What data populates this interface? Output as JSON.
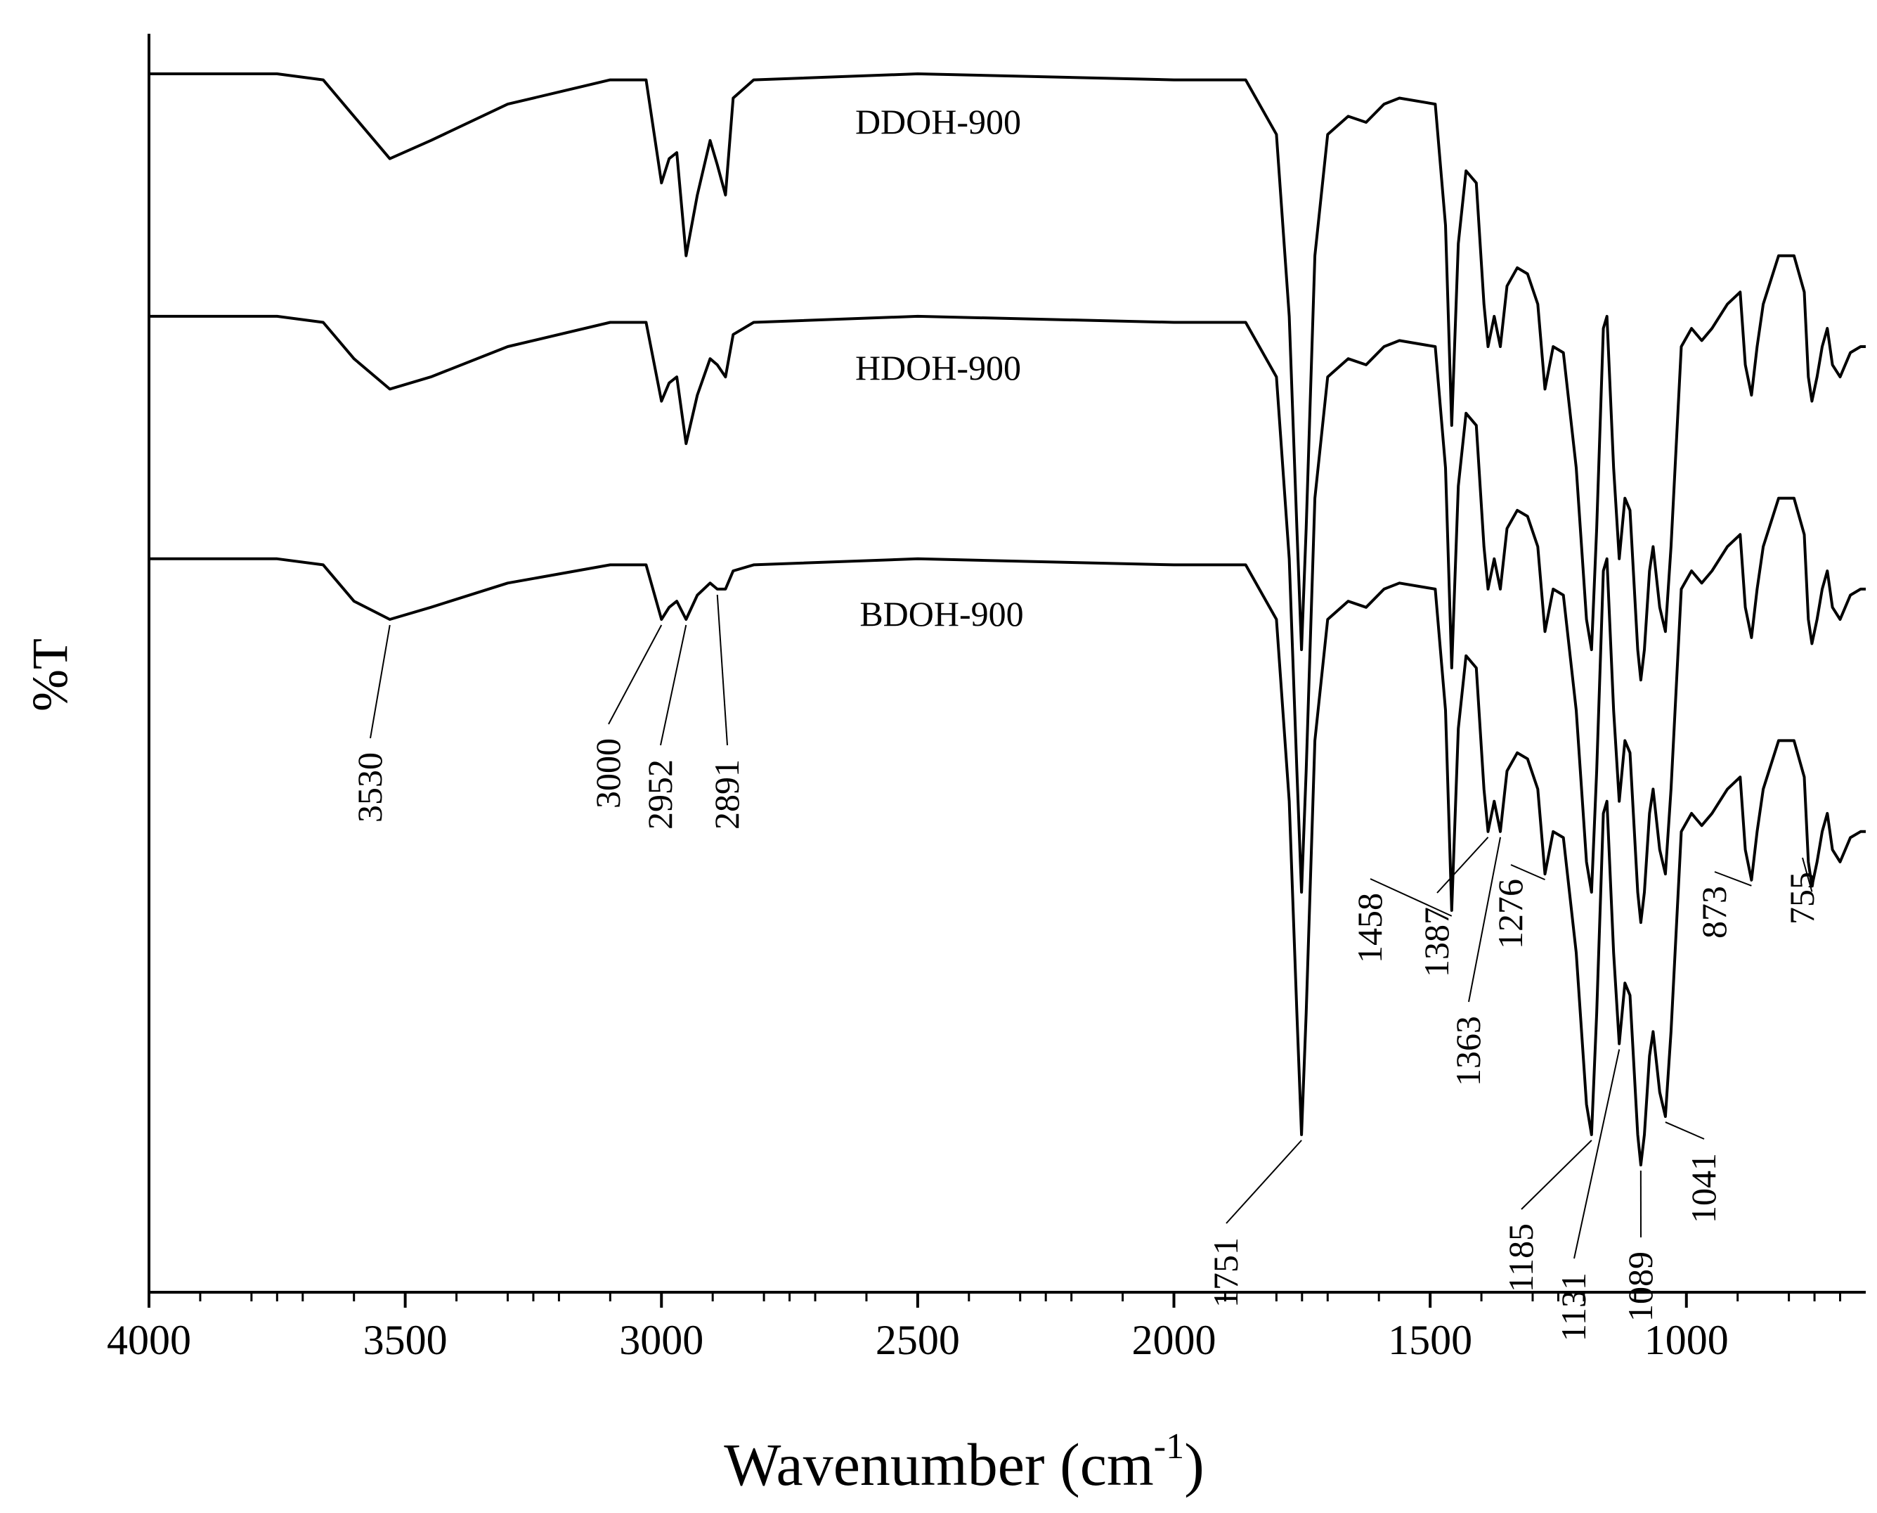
{
  "chart_data": {
    "type": "line",
    "title": "",
    "xlabel": "Wavenumber (cm",
    "xlabel_sup": "-1",
    "xlabel_close": ")",
    "ylabel": "%T",
    "xlim": [
      4000,
      650
    ],
    "x_ticks": [
      4000,
      3500,
      3000,
      2500,
      2000,
      1500,
      1000
    ],
    "x_tick_labels": [
      "4000",
      "3500",
      "3000",
      "2500",
      "2000",
      "1500",
      "1000"
    ],
    "y_ticks_shown": false,
    "series": [
      {
        "name": "DDOH-900",
        "offset": 3.0,
        "points": [
          [
            4000,
            1.0
          ],
          [
            3750,
            1.0
          ],
          [
            3660,
            0.99
          ],
          [
            3600,
            0.93
          ],
          [
            3530,
            0.86
          ],
          [
            3450,
            0.89
          ],
          [
            3300,
            0.95
          ],
          [
            3100,
            0.99
          ],
          [
            3030,
            0.99
          ],
          [
            3000,
            0.82
          ],
          [
            2985,
            0.86
          ],
          [
            2970,
            0.87
          ],
          [
            2952,
            0.7
          ],
          [
            2930,
            0.8
          ],
          [
            2905,
            0.89
          ],
          [
            2891,
            0.85
          ],
          [
            2875,
            0.8
          ],
          [
            2860,
            0.96
          ],
          [
            2820,
            0.99
          ],
          [
            2500,
            1.0
          ],
          [
            2000,
            0.99
          ],
          [
            1860,
            0.99
          ],
          [
            1800,
            0.9
          ],
          [
            1775,
            0.6
          ],
          [
            1760,
            0.25
          ],
          [
            1751,
            0.05
          ],
          [
            1742,
            0.25
          ],
          [
            1725,
            0.7
          ],
          [
            1700,
            0.9
          ],
          [
            1660,
            0.93
          ],
          [
            1625,
            0.92
          ],
          [
            1590,
            0.95
          ],
          [
            1560,
            0.96
          ],
          [
            1490,
            0.95
          ],
          [
            1470,
            0.75
          ],
          [
            1458,
            0.42
          ],
          [
            1445,
            0.72
          ],
          [
            1430,
            0.84
          ],
          [
            1410,
            0.82
          ],
          [
            1395,
            0.62
          ],
          [
            1387,
            0.55
          ],
          [
            1375,
            0.6
          ],
          [
            1363,
            0.55
          ],
          [
            1350,
            0.65
          ],
          [
            1330,
            0.68
          ],
          [
            1310,
            0.67
          ],
          [
            1290,
            0.62
          ],
          [
            1276,
            0.48
          ],
          [
            1260,
            0.55
          ],
          [
            1240,
            0.54
          ],
          [
            1215,
            0.35
          ],
          [
            1195,
            0.1
          ],
          [
            1185,
            0.05
          ],
          [
            1175,
            0.25
          ],
          [
            1162,
            0.58
          ],
          [
            1155,
            0.6
          ],
          [
            1142,
            0.35
          ],
          [
            1131,
            0.2
          ],
          [
            1120,
            0.3
          ],
          [
            1110,
            0.28
          ],
          [
            1095,
            0.05
          ],
          [
            1089,
            0.0
          ],
          [
            1082,
            0.05
          ],
          [
            1072,
            0.18
          ],
          [
            1065,
            0.22
          ],
          [
            1052,
            0.12
          ],
          [
            1041,
            0.08
          ],
          [
            1030,
            0.22
          ],
          [
            1010,
            0.55
          ],
          [
            990,
            0.58
          ],
          [
            970,
            0.56
          ],
          [
            950,
            0.58
          ],
          [
            920,
            0.62
          ],
          [
            895,
            0.64
          ],
          [
            885,
            0.52
          ],
          [
            873,
            0.47
          ],
          [
            862,
            0.55
          ],
          [
            850,
            0.62
          ],
          [
            820,
            0.7
          ],
          [
            790,
            0.7
          ],
          [
            770,
            0.64
          ],
          [
            762,
            0.5
          ],
          [
            755,
            0.46
          ],
          [
            745,
            0.5
          ],
          [
            735,
            0.55
          ],
          [
            725,
            0.58
          ],
          [
            715,
            0.52
          ],
          [
            700,
            0.5
          ],
          [
            680,
            0.54
          ],
          [
            660,
            0.55
          ],
          [
            650,
            0.55
          ]
        ]
      },
      {
        "name": "HDOH-900",
        "offset": 2.6,
        "points": [
          [
            4000,
            1.0
          ],
          [
            3750,
            1.0
          ],
          [
            3660,
            0.99
          ],
          [
            3600,
            0.93
          ],
          [
            3530,
            0.88
          ],
          [
            3450,
            0.9
          ],
          [
            3300,
            0.95
          ],
          [
            3100,
            0.99
          ],
          [
            3030,
            0.99
          ],
          [
            3000,
            0.86
          ],
          [
            2985,
            0.89
          ],
          [
            2970,
            0.9
          ],
          [
            2952,
            0.79
          ],
          [
            2930,
            0.87
          ],
          [
            2905,
            0.93
          ],
          [
            2891,
            0.92
          ],
          [
            2875,
            0.9
          ],
          [
            2860,
            0.97
          ],
          [
            2820,
            0.99
          ],
          [
            2500,
            1.0
          ],
          [
            2000,
            0.99
          ],
          [
            1860,
            0.99
          ],
          [
            1800,
            0.9
          ],
          [
            1775,
            0.6
          ],
          [
            1760,
            0.25
          ],
          [
            1751,
            0.05
          ],
          [
            1742,
            0.25
          ],
          [
            1725,
            0.7
          ],
          [
            1700,
            0.9
          ],
          [
            1660,
            0.93
          ],
          [
            1625,
            0.92
          ],
          [
            1590,
            0.95
          ],
          [
            1560,
            0.96
          ],
          [
            1490,
            0.95
          ],
          [
            1470,
            0.75
          ],
          [
            1458,
            0.42
          ],
          [
            1445,
            0.72
          ],
          [
            1430,
            0.84
          ],
          [
            1410,
            0.82
          ],
          [
            1395,
            0.62
          ],
          [
            1387,
            0.55
          ],
          [
            1375,
            0.6
          ],
          [
            1363,
            0.55
          ],
          [
            1350,
            0.65
          ],
          [
            1330,
            0.68
          ],
          [
            1310,
            0.67
          ],
          [
            1290,
            0.62
          ],
          [
            1276,
            0.48
          ],
          [
            1260,
            0.55
          ],
          [
            1240,
            0.54
          ],
          [
            1215,
            0.35
          ],
          [
            1195,
            0.1
          ],
          [
            1185,
            0.05
          ],
          [
            1175,
            0.25
          ],
          [
            1162,
            0.58
          ],
          [
            1155,
            0.6
          ],
          [
            1142,
            0.35
          ],
          [
            1131,
            0.2
          ],
          [
            1120,
            0.3
          ],
          [
            1110,
            0.28
          ],
          [
            1095,
            0.05
          ],
          [
            1089,
            0.0
          ],
          [
            1082,
            0.05
          ],
          [
            1072,
            0.18
          ],
          [
            1065,
            0.22
          ],
          [
            1052,
            0.12
          ],
          [
            1041,
            0.08
          ],
          [
            1030,
            0.22
          ],
          [
            1010,
            0.55
          ],
          [
            990,
            0.58
          ],
          [
            970,
            0.56
          ],
          [
            950,
            0.58
          ],
          [
            920,
            0.62
          ],
          [
            895,
            0.64
          ],
          [
            885,
            0.52
          ],
          [
            873,
            0.47
          ],
          [
            862,
            0.55
          ],
          [
            850,
            0.62
          ],
          [
            820,
            0.7
          ],
          [
            790,
            0.7
          ],
          [
            770,
            0.64
          ],
          [
            762,
            0.5
          ],
          [
            755,
            0.46
          ],
          [
            745,
            0.5
          ],
          [
            735,
            0.55
          ],
          [
            725,
            0.58
          ],
          [
            715,
            0.52
          ],
          [
            700,
            0.5
          ],
          [
            680,
            0.54
          ],
          [
            660,
            0.55
          ],
          [
            650,
            0.55
          ]
        ]
      },
      {
        "name": "BDOH-900",
        "offset": 2.2,
        "points": [
          [
            4000,
            1.0
          ],
          [
            3750,
            1.0
          ],
          [
            3660,
            0.99
          ],
          [
            3600,
            0.93
          ],
          [
            3530,
            0.9
          ],
          [
            3450,
            0.92
          ],
          [
            3300,
            0.96
          ],
          [
            3100,
            0.99
          ],
          [
            3030,
            0.99
          ],
          [
            3000,
            0.9
          ],
          [
            2985,
            0.92
          ],
          [
            2970,
            0.93
          ],
          [
            2952,
            0.9
          ],
          [
            2930,
            0.94
          ],
          [
            2905,
            0.96
          ],
          [
            2891,
            0.95
          ],
          [
            2875,
            0.95
          ],
          [
            2860,
            0.98
          ],
          [
            2820,
            0.99
          ],
          [
            2500,
            1.0
          ],
          [
            2000,
            0.99
          ],
          [
            1860,
            0.99
          ],
          [
            1800,
            0.9
          ],
          [
            1775,
            0.6
          ],
          [
            1760,
            0.25
          ],
          [
            1751,
            0.05
          ],
          [
            1742,
            0.25
          ],
          [
            1725,
            0.7
          ],
          [
            1700,
            0.9
          ],
          [
            1660,
            0.93
          ],
          [
            1625,
            0.92
          ],
          [
            1590,
            0.95
          ],
          [
            1560,
            0.96
          ],
          [
            1490,
            0.95
          ],
          [
            1470,
            0.75
          ],
          [
            1458,
            0.42
          ],
          [
            1445,
            0.72
          ],
          [
            1430,
            0.84
          ],
          [
            1410,
            0.82
          ],
          [
            1395,
            0.62
          ],
          [
            1387,
            0.55
          ],
          [
            1375,
            0.6
          ],
          [
            1363,
            0.55
          ],
          [
            1350,
            0.65
          ],
          [
            1330,
            0.68
          ],
          [
            1310,
            0.67
          ],
          [
            1290,
            0.62
          ],
          [
            1276,
            0.48
          ],
          [
            1260,
            0.55
          ],
          [
            1240,
            0.54
          ],
          [
            1215,
            0.35
          ],
          [
            1195,
            0.1
          ],
          [
            1185,
            0.05
          ],
          [
            1175,
            0.25
          ],
          [
            1162,
            0.58
          ],
          [
            1155,
            0.6
          ],
          [
            1142,
            0.35
          ],
          [
            1131,
            0.2
          ],
          [
            1120,
            0.3
          ],
          [
            1110,
            0.28
          ],
          [
            1095,
            0.05
          ],
          [
            1089,
            0.0
          ],
          [
            1082,
            0.05
          ],
          [
            1072,
            0.18
          ],
          [
            1065,
            0.22
          ],
          [
            1052,
            0.12
          ],
          [
            1041,
            0.08
          ],
          [
            1030,
            0.22
          ],
          [
            1010,
            0.55
          ],
          [
            990,
            0.58
          ],
          [
            970,
            0.56
          ],
          [
            950,
            0.58
          ],
          [
            920,
            0.62
          ],
          [
            895,
            0.64
          ],
          [
            885,
            0.52
          ],
          [
            873,
            0.47
          ],
          [
            862,
            0.55
          ],
          [
            850,
            0.62
          ],
          [
            820,
            0.7
          ],
          [
            790,
            0.7
          ],
          [
            770,
            0.64
          ],
          [
            762,
            0.5
          ],
          [
            755,
            0.46
          ],
          [
            745,
            0.5
          ],
          [
            735,
            0.55
          ],
          [
            725,
            0.58
          ],
          [
            715,
            0.52
          ],
          [
            700,
            0.5
          ],
          [
            680,
            0.54
          ],
          [
            660,
            0.55
          ],
          [
            650,
            0.55
          ]
        ]
      }
    ],
    "peak_annotations": [
      {
        "label": "3530",
        "x": 3530
      },
      {
        "label": "3000",
        "x": 3000
      },
      {
        "label": "2952",
        "x": 2952
      },
      {
        "label": "2891",
        "x": 2891
      },
      {
        "label": "1751",
        "x": 1751
      },
      {
        "label": "1458",
        "x": 1458
      },
      {
        "label": "1387",
        "x": 1387
      },
      {
        "label": "1363",
        "x": 1363
      },
      {
        "label": "1276",
        "x": 1276
      },
      {
        "label": "1185",
        "x": 1185
      },
      {
        "label": "1131",
        "x": 1131
      },
      {
        "label": "1089",
        "x": 1089
      },
      {
        "label": "1041",
        "x": 1041
      },
      {
        "label": "873",
        "x": 873
      },
      {
        "label": "755",
        "x": 755
      }
    ]
  }
}
